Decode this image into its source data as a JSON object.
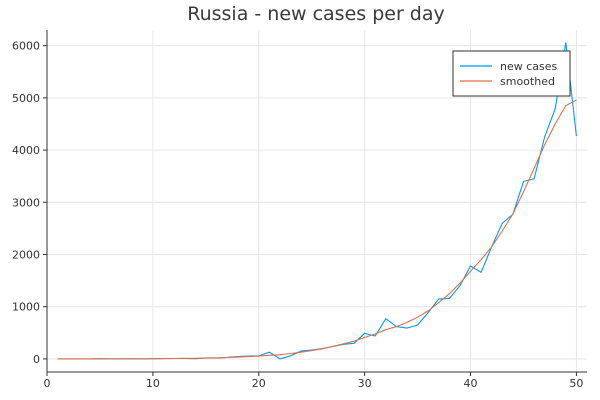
{
  "chart_data": {
    "type": "line",
    "title": "Russia - new cases per day",
    "xlabel": "",
    "ylabel": "",
    "xlim": [
      0,
      51
    ],
    "ylim": [
      -250,
      6300
    ],
    "x_ticks": [
      0,
      10,
      20,
      30,
      40,
      50
    ],
    "y_ticks": [
      0,
      1000,
      2000,
      3000,
      4000,
      5000,
      6000
    ],
    "grid": true,
    "legend_position": "top-right",
    "series": [
      {
        "name": "new cases",
        "color": "#009af9",
        "x": [
          1,
          2,
          3,
          4,
          5,
          6,
          7,
          8,
          9,
          10,
          11,
          12,
          13,
          14,
          15,
          16,
          17,
          18,
          19,
          20,
          21,
          22,
          23,
          24,
          25,
          26,
          27,
          28,
          29,
          30,
          31,
          32,
          33,
          34,
          35,
          36,
          37,
          38,
          39,
          40,
          41,
          42,
          43,
          44,
          45,
          46,
          47,
          48,
          49,
          50
        ],
        "y": [
          0,
          0,
          0,
          0,
          5,
          0,
          0,
          2,
          0,
          5,
          6,
          8,
          10,
          5,
          20,
          20,
          30,
          45,
          55,
          60,
          130,
          0,
          60,
          150,
          170,
          200,
          240,
          280,
          300,
          490,
          440,
          770,
          620,
          590,
          650,
          890,
          1150,
          1160,
          1400,
          1780,
          1660,
          2150,
          2600,
          2770,
          3400,
          3450,
          4250,
          4790,
          6060,
          4270
        ]
      },
      {
        "name": "smoothed",
        "color": "#e26f46",
        "x": [
          1,
          2,
          3,
          4,
          5,
          6,
          7,
          8,
          9,
          10,
          11,
          12,
          13,
          14,
          15,
          16,
          17,
          18,
          19,
          20,
          21,
          22,
          23,
          24,
          25,
          26,
          27,
          28,
          29,
          30,
          31,
          32,
          33,
          34,
          35,
          36,
          37,
          38,
          39,
          40,
          41,
          42,
          43,
          44,
          45,
          46,
          47,
          48,
          49,
          50
        ],
        "y": [
          0,
          0,
          0,
          0,
          2,
          2,
          3,
          3,
          3,
          4,
          6,
          8,
          10,
          12,
          16,
          20,
          28,
          36,
          45,
          55,
          70,
          80,
          105,
          130,
          160,
          195,
          240,
          290,
          340,
          410,
          480,
          560,
          620,
          700,
          800,
          920,
          1080,
          1250,
          1450,
          1680,
          1900,
          2150,
          2450,
          2780,
          3200,
          3650,
          4100,
          4500,
          4850,
          4960
        ]
      }
    ]
  }
}
